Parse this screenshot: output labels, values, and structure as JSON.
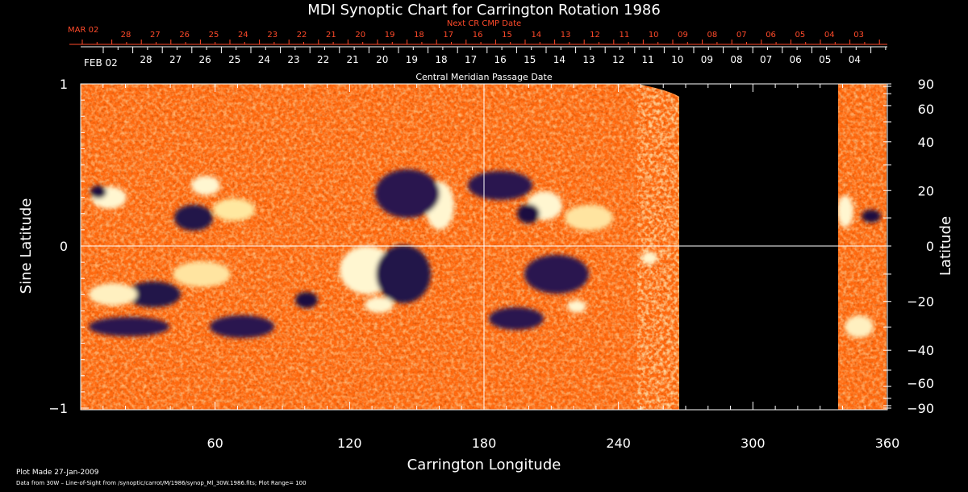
{
  "chart_data": {
    "type": "heatmap",
    "title": "MDI Synoptic Chart for Carrington Rotation 1986",
    "xlabel": "Carrington Longitude",
    "ylabel_left": "Sine Latitude",
    "ylabel_right": "Latitude",
    "xlim": [
      0,
      360
    ],
    "ylim": [
      -1,
      1
    ],
    "x_ticks": [
      "60",
      "120",
      "180",
      "240",
      "300",
      "360"
    ],
    "y_left_ticks": [
      "1",
      "0",
      "−1"
    ],
    "y_right_ticks": [
      "90",
      "60",
      "40",
      "20",
      "0",
      "−20",
      "−40",
      "−60",
      "−90"
    ],
    "y_right_values": [
      90,
      60,
      40,
      20,
      0,
      -20,
      -40,
      -60,
      -90
    ],
    "cmp_label": "Central Meridian Passage Date",
    "cmp_month_label": "FEB 02",
    "cmp_dates": [
      "28",
      "27",
      "26",
      "25",
      "24",
      "23",
      "22",
      "21",
      "20",
      "19",
      "18",
      "17",
      "16",
      "15",
      "14",
      "13",
      "12",
      "11",
      "10",
      "09",
      "08",
      "07",
      "06",
      "05",
      "04"
    ],
    "next_cr_label": "Next CR CMP Date",
    "next_month_label": "MAR 02",
    "next_dates": [
      "28",
      "27",
      "26",
      "25",
      "24",
      "23",
      "22",
      "21",
      "20",
      "19",
      "18",
      "17",
      "16",
      "15",
      "14",
      "13",
      "12",
      "11",
      "10",
      "09",
      "08",
      "07",
      "06",
      "05",
      "04",
      "03"
    ],
    "data_gap_longitude": [
      268,
      338
    ],
    "plot_range": 100,
    "footer_line1": "Plot Made 27-Jan-2009",
    "footer_line2": "Data from 30W – Line-of-Sight from /synoptic/carrot/M/1986/synop_Ml_30W.1986.fits; Plot Range=  100",
    "colors": {
      "background": "#000000",
      "accent_red": "#ff4a2a",
      "field_orange": "#ff6a10"
    }
  }
}
